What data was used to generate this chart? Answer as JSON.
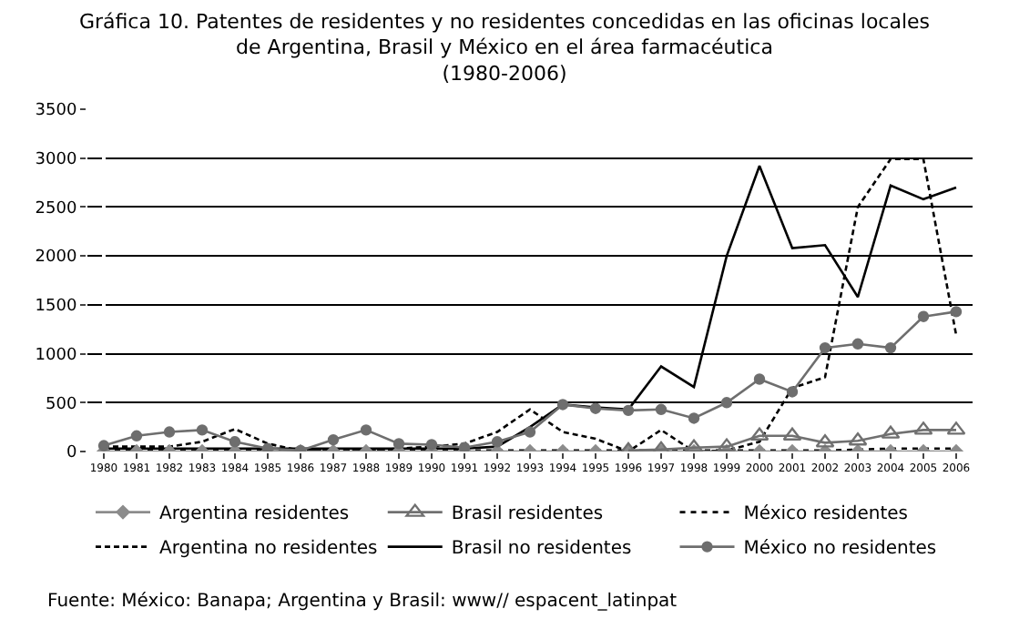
{
  "chart_data": {
    "type": "line",
    "title": "Gráfica 10. Patentes de residentes y no residentes concedidas en las oficinas locales\nde Argentina, Brasil y México en el área farmacéutica",
    "subtitle": "(1980-2006)",
    "categories": [
      "1980",
      "1981",
      "1982",
      "1983",
      "1984",
      "1985",
      "1986",
      "1987",
      "1988",
      "1989",
      "1990",
      "1991",
      "1992",
      "1993",
      "1994",
      "1995",
      "1996",
      "1997",
      "1998",
      "1999",
      "2000",
      "2001",
      "2002",
      "2003",
      "2004",
      "2005",
      "2006"
    ],
    "series": [
      {
        "name": "Argentina residentes",
        "color": "#8c8c8c",
        "marker": "diamond",
        "line_style": "solid",
        "values": [
          0,
          0,
          0,
          0,
          0,
          0,
          0,
          0,
          0,
          0,
          0,
          0,
          0,
          0,
          0,
          0,
          0,
          0,
          0,
          0,
          0,
          0,
          0,
          0,
          0,
          0,
          0
        ]
      },
      {
        "name": "Brasil residentes",
        "color": "#707070",
        "marker": "triangle",
        "line_style": "solid",
        "values": [
          null,
          null,
          null,
          null,
          null,
          null,
          null,
          null,
          null,
          null,
          null,
          null,
          null,
          null,
          null,
          null,
          10,
          20,
          40,
          50,
          160,
          160,
          90,
          110,
          180,
          220,
          220
        ]
      },
      {
        "name": "México residentes",
        "color": "#000000",
        "marker": "none",
        "line_style": "dotted",
        "values": [
          10,
          10,
          10,
          10,
          10,
          10,
          10,
          10,
          10,
          10,
          10,
          10,
          10,
          10,
          10,
          10,
          10,
          10,
          10,
          10,
          10,
          10,
          10,
          20,
          30,
          30,
          30
        ]
      },
      {
        "name": "Argentina no residentes",
        "color": "#000000",
        "marker": "none",
        "line_style": "dashed",
        "values": [
          50,
          50,
          50,
          100,
          230,
          80,
          10,
          10,
          10,
          30,
          50,
          80,
          200,
          430,
          200,
          130,
          0,
          220,
          0,
          10,
          100,
          650,
          760,
          2500,
          2990,
          2990,
          1190
        ]
      },
      {
        "name": "Brasil no residentes",
        "color": "#000000",
        "marker": "none",
        "line_style": "solid",
        "values": [
          30,
          30,
          30,
          30,
          30,
          30,
          30,
          30,
          30,
          30,
          30,
          30,
          50,
          250,
          480,
          450,
          430,
          870,
          660,
          2000,
          2920,
          2080,
          2110,
          1580,
          2720,
          2580,
          2700
        ]
      },
      {
        "name": "México no residentes",
        "color": "#6e6e6e",
        "marker": "circle",
        "line_style": "solid",
        "values": [
          60,
          160,
          200,
          220,
          100,
          30,
          10,
          120,
          220,
          80,
          70,
          40,
          100,
          200,
          480,
          440,
          420,
          430,
          340,
          500,
          740,
          610,
          1060,
          1100,
          1060,
          1380,
          1430
        ]
      }
    ],
    "ylim": [
      0,
      3500
    ],
    "yticks": [
      0,
      500,
      1000,
      1500,
      2000,
      2500,
      3000,
      3500
    ],
    "grid": "y",
    "legend": "bottom",
    "annotations": [
      "Fuente: México: Banapa; Argentina y Brasil: www// espacent_latinpat"
    ]
  }
}
